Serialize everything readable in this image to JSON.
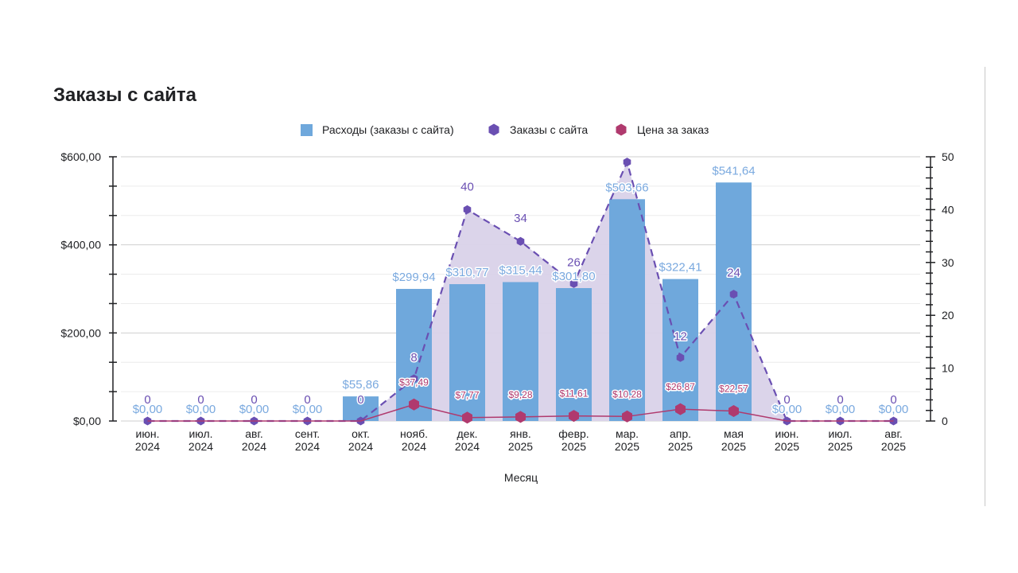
{
  "title": "Заказы с сайта",
  "chart_data": {
    "type": "bar",
    "title": "Заказы с сайта",
    "xlabel": "Месяц",
    "categories": [
      [
        "июн.",
        "2024"
      ],
      [
        "июл.",
        "2024"
      ],
      [
        "авг.",
        "2024"
      ],
      [
        "сент.",
        "2024"
      ],
      [
        "окт.",
        "2024"
      ],
      [
        "нояб.",
        "2024"
      ],
      [
        "дек.",
        "2024"
      ],
      [
        "янв.",
        "2025"
      ],
      [
        "февр.",
        "2025"
      ],
      [
        "мар.",
        "2025"
      ],
      [
        "апр.",
        "2025"
      ],
      [
        "мая",
        "2025"
      ],
      [
        "июн.",
        "2025"
      ],
      [
        "июл.",
        "2025"
      ],
      [
        "авг.",
        "2025"
      ]
    ],
    "y_left": {
      "range": [
        0,
        600
      ],
      "ticks": [
        "$0,00",
        "$200,00",
        "$400,00",
        "$600,00"
      ],
      "tick_values": [
        0,
        200,
        400,
        600
      ]
    },
    "y_right": {
      "range": [
        0,
        50
      ],
      "ticks": [
        "0",
        "10",
        "20",
        "30",
        "40",
        "50"
      ],
      "tick_values": [
        0,
        10,
        20,
        30,
        40,
        50
      ]
    },
    "legend_position": "top",
    "grid": true,
    "series": [
      {
        "name": "Расходы (заказы с сайта)",
        "type": "bar",
        "axis": "left",
        "color": "#6fa8dc",
        "values": [
          0,
          0,
          0,
          0,
          55.86,
          299.94,
          310.77,
          315.44,
          301.8,
          503.66,
          322.41,
          541.64,
          0,
          0,
          0
        ],
        "labels": [
          "$0,00",
          "$0,00",
          "$0,00",
          "$0,00",
          "$55,86",
          "$299,94",
          "$310,77",
          "$315,44",
          "$301,80",
          "$503,66",
          "$322,41",
          "$541,64",
          "$0,00",
          "$0,00",
          "$0,00"
        ]
      },
      {
        "name": "Заказы с сайта",
        "type": "area-line-dashed",
        "axis": "right",
        "color": "#6a4fb2",
        "fill": "#d9d2e9",
        "values": [
          0,
          0,
          0,
          0,
          0,
          8,
          40,
          34,
          26,
          49,
          12,
          24,
          0,
          0,
          0
        ],
        "labels": [
          "0",
          "0",
          "0",
          "0",
          "0",
          "8",
          "40",
          "34",
          "26",
          "",
          "12",
          "24",
          "0",
          "0",
          "0"
        ]
      },
      {
        "name": "Цена за заказ",
        "type": "line",
        "axis": "left",
        "color": "#b03a6e",
        "values": [
          0,
          0,
          0,
          0,
          0,
          37.49,
          7.77,
          9.28,
          11.61,
          10.28,
          26.87,
          22.57,
          0,
          0,
          0
        ],
        "labels": [
          "",
          "",
          "",
          "",
          "",
          "$37,49",
          "$7,77",
          "$9,28",
          "$11,61",
          "$10,28",
          "$26,87",
          "$22,57",
          "",
          "",
          ""
        ]
      }
    ]
  }
}
